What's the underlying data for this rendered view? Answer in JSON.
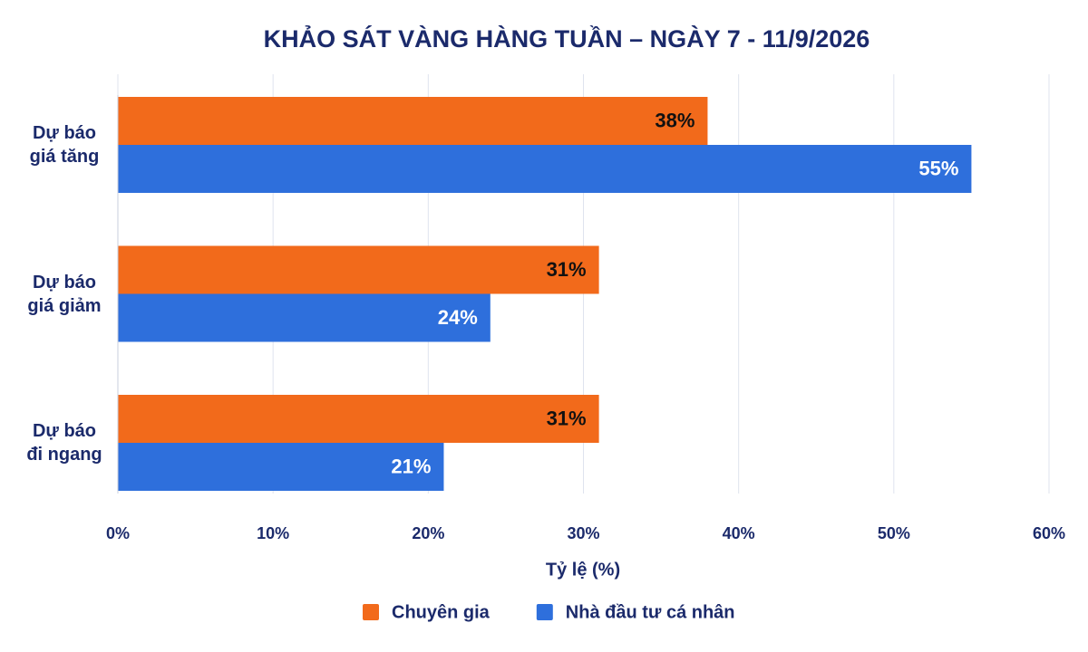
{
  "chart_data": {
    "type": "hbar",
    "title": "KHẢO SÁT VÀNG HÀNG TUẦN – NGÀY 7 - 11/9/2026",
    "categories": [
      "Dự báo giá tăng",
      "Dự báo giá giảm",
      "Dự báo đi ngang"
    ],
    "series": [
      {
        "name": "Chuyên gia",
        "color": "#f26a1b",
        "values": [
          38,
          31,
          31
        ],
        "value_labels": [
          "38%",
          "31%",
          "31%"
        ]
      },
      {
        "name": "Nhà đầu tư cá nhân",
        "color": "#2e6fdc",
        "values": [
          55,
          24,
          21
        ],
        "value_labels": [
          "55%",
          "24%",
          "21%"
        ]
      }
    ],
    "xlabel": "Tỷ lệ (%)",
    "xlim": [
      0,
      60
    ],
    "xticks": [
      {
        "value": 0,
        "label": "0%"
      },
      {
        "value": 10,
        "label": "10%"
      },
      {
        "value": 20,
        "label": "20%"
      },
      {
        "value": 30,
        "label": "30%"
      },
      {
        "value": 40,
        "label": "40%"
      },
      {
        "value": 50,
        "label": "50%"
      },
      {
        "value": 60,
        "label": "60%"
      }
    ],
    "grid": true
  }
}
